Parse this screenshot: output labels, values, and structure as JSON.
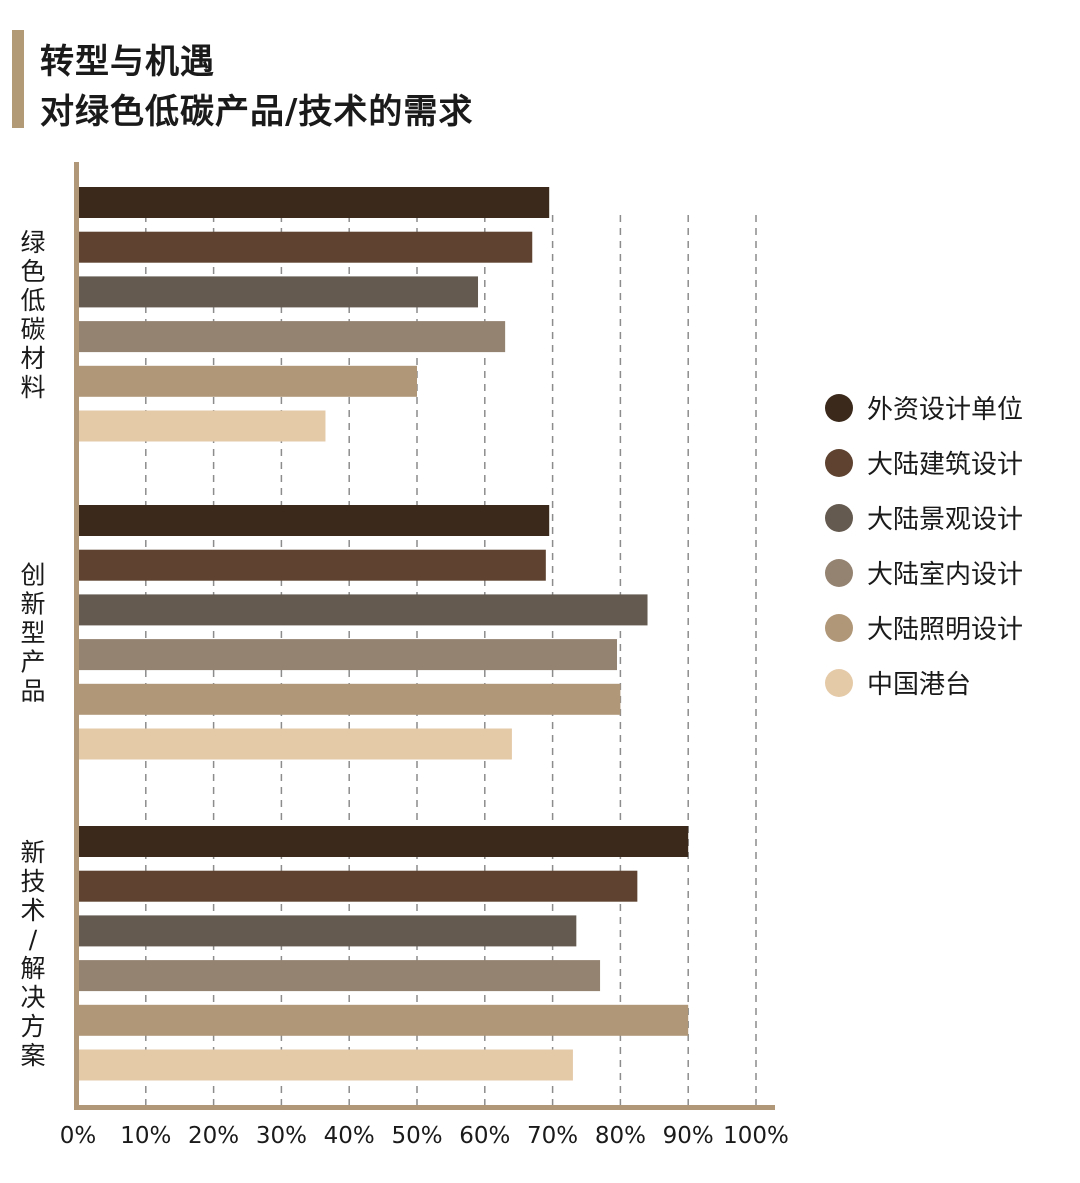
{
  "header": {
    "title_line1": "转型与机遇",
    "title_line2": "对绿色低碳产品/技术的需求"
  },
  "chart_data": {
    "type": "bar",
    "orientation": "horizontal",
    "categories": [
      "绿色低碳材料",
      "创新型产品",
      "新技术/解决方案"
    ],
    "series": [
      {
        "name": "外资设计单位",
        "color": "#3b2a1c",
        "values": [
          69.5,
          69.5,
          90
        ]
      },
      {
        "name": "大陆建筑设计",
        "color": "#5f4330",
        "values": [
          67,
          69,
          82.5
        ]
      },
      {
        "name": "大陆景观设计",
        "color": "#655a4f",
        "values": [
          59,
          84,
          73.5
        ]
      },
      {
        "name": "大陆室内设计",
        "color": "#958371",
        "values": [
          63,
          79.5,
          77
        ]
      },
      {
        "name": "大陆照明设计",
        "color": "#b09778",
        "values": [
          50,
          80,
          90
        ]
      },
      {
        "name": "中国港台",
        "color": "#e5caa8",
        "values": [
          36.5,
          64,
          73
        ]
      }
    ],
    "xlim": [
      0,
      100
    ],
    "x_ticks": [
      "0%",
      "10%",
      "20%",
      "30%",
      "40%",
      "50%",
      "60%",
      "70%",
      "80%",
      "90%",
      "100%"
    ],
    "grid": "vertical dashed",
    "legend_position": "right"
  }
}
